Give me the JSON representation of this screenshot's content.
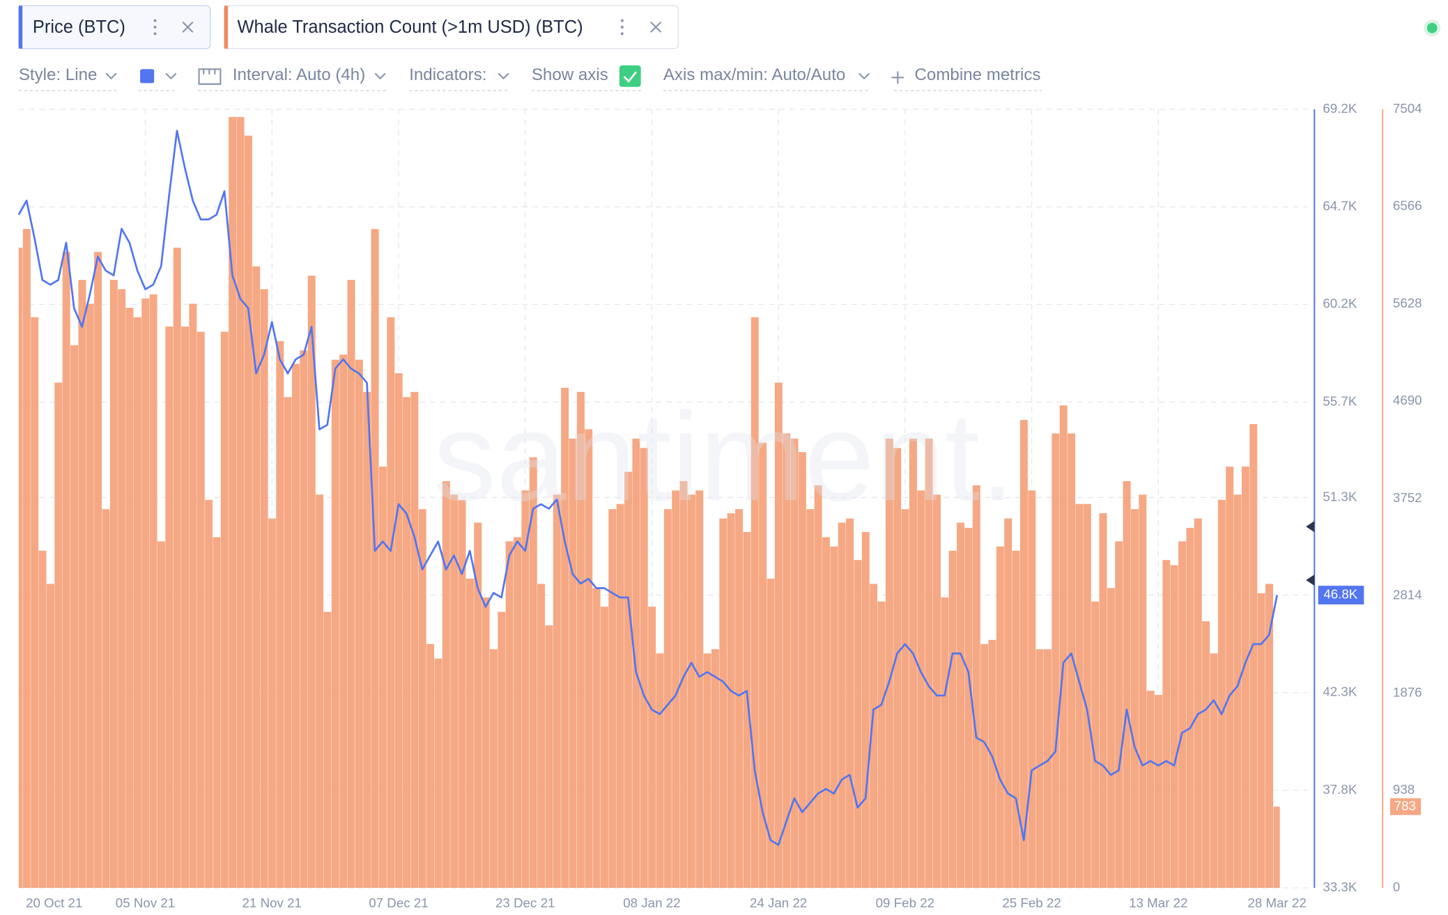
{
  "toolbar": {
    "style": "Style: Line",
    "interval": "Interval: Auto (4h)",
    "indicators": "Indicators:",
    "show_axis": "Show axis",
    "axis_range": "Axis max/min: Auto/Auto",
    "combine": "Combine metrics",
    "watermark": "santiment."
  },
  "chart_data": {
    "type": "combo",
    "x": [
      "2021-10-20",
      "2021-10-21",
      "2021-10-22",
      "2021-10-23",
      "2021-10-24",
      "2021-10-25",
      "2021-10-26",
      "2021-10-27",
      "2021-10-28",
      "2021-10-29",
      "2021-10-30",
      "2021-10-31",
      "2021-11-01",
      "2021-11-02",
      "2021-11-03",
      "2021-11-04",
      "2021-11-05",
      "2021-11-06",
      "2021-11-07",
      "2021-11-08",
      "2021-11-09",
      "2021-11-10",
      "2021-11-11",
      "2021-11-12",
      "2021-11-13",
      "2021-11-14",
      "2021-11-15",
      "2021-11-16",
      "2021-11-17",
      "2021-11-18",
      "2021-11-19",
      "2021-11-20",
      "2021-11-21",
      "2021-11-22",
      "2021-11-23",
      "2021-11-24",
      "2021-11-25",
      "2021-11-26",
      "2021-11-27",
      "2021-11-28",
      "2021-11-29",
      "2021-11-30",
      "2021-12-01",
      "2021-12-02",
      "2021-12-03",
      "2021-12-04",
      "2021-12-05",
      "2021-12-06",
      "2021-12-07",
      "2021-12-08",
      "2021-12-09",
      "2021-12-10",
      "2021-12-11",
      "2021-12-12",
      "2021-12-13",
      "2021-12-14",
      "2021-12-15",
      "2021-12-16",
      "2021-12-17",
      "2021-12-18",
      "2021-12-19",
      "2021-12-20",
      "2021-12-21",
      "2021-12-22",
      "2021-12-23",
      "2021-12-24",
      "2021-12-25",
      "2021-12-26",
      "2021-12-27",
      "2021-12-28",
      "2021-12-29",
      "2021-12-30",
      "2021-12-31",
      "2022-01-01",
      "2022-01-02",
      "2022-01-03",
      "2022-01-04",
      "2022-01-05",
      "2022-01-06",
      "2022-01-07",
      "2022-01-08",
      "2022-01-09",
      "2022-01-10",
      "2022-01-11",
      "2022-01-12",
      "2022-01-13",
      "2022-01-14",
      "2022-01-15",
      "2022-01-16",
      "2022-01-17",
      "2022-01-18",
      "2022-01-19",
      "2022-01-20",
      "2022-01-21",
      "2022-01-22",
      "2022-01-23",
      "2022-01-24",
      "2022-01-25",
      "2022-01-26",
      "2022-01-27",
      "2022-01-28",
      "2022-01-29",
      "2022-01-30",
      "2022-01-31",
      "2022-02-01",
      "2022-02-02",
      "2022-02-03",
      "2022-02-04",
      "2022-02-05",
      "2022-02-06",
      "2022-02-07",
      "2022-02-08",
      "2022-02-09",
      "2022-02-10",
      "2022-02-11",
      "2022-02-12",
      "2022-02-13",
      "2022-02-14",
      "2022-02-15",
      "2022-02-16",
      "2022-02-17",
      "2022-02-18",
      "2022-02-19",
      "2022-02-20",
      "2022-02-21",
      "2022-02-22",
      "2022-02-23",
      "2022-02-24",
      "2022-02-25",
      "2022-02-26",
      "2022-02-27",
      "2022-02-28",
      "2022-03-01",
      "2022-03-02",
      "2022-03-03",
      "2022-03-04",
      "2022-03-05",
      "2022-03-06",
      "2022-03-07",
      "2022-03-08",
      "2022-03-09",
      "2022-03-10",
      "2022-03-11",
      "2022-03-12",
      "2022-03-13",
      "2022-03-14",
      "2022-03-15",
      "2022-03-16",
      "2022-03-17",
      "2022-03-18",
      "2022-03-19",
      "2022-03-20",
      "2022-03-21",
      "2022-03-22",
      "2022-03-23",
      "2022-03-24",
      "2022-03-25",
      "2022-03-26",
      "2022-03-27",
      "2022-03-28"
    ],
    "series": [
      {
        "name": "Price (BTC)",
        "type": "line",
        "axis": "y",
        "color": "#5275f0",
        "last_label": "46.8K",
        "values": [
          64340,
          64990,
          63260,
          61330,
          61110,
          61330,
          63050,
          60030,
          59170,
          60680,
          62400,
          61760,
          61540,
          63690,
          63050,
          61760,
          60900,
          61110,
          61970,
          65200,
          68210,
          66490,
          64990,
          64120,
          64120,
          64340,
          65420,
          61540,
          60470,
          60030,
          57020,
          57880,
          59390,
          57670,
          57020,
          57670,
          57880,
          59170,
          54440,
          54650,
          57240,
          57670,
          57240,
          57020,
          56590,
          48840,
          49270,
          48840,
          50990,
          50560,
          49490,
          47980,
          48630,
          49270,
          47980,
          48630,
          47770,
          48840,
          47120,
          46260,
          46900,
          46690,
          48630,
          49270,
          48840,
          50780,
          50990,
          50780,
          51210,
          49270,
          47770,
          47330,
          47550,
          47120,
          47120,
          46900,
          46690,
          46690,
          43250,
          42170,
          41520,
          41310,
          41740,
          42170,
          43030,
          43680,
          43030,
          43250,
          43030,
          42810,
          42380,
          42170,
          42380,
          38720,
          36790,
          35500,
          35280,
          36360,
          37430,
          36790,
          37220,
          37650,
          37860,
          37650,
          38290,
          38510,
          37000,
          37430,
          41520,
          41740,
          42810,
          44110,
          44540,
          44110,
          43250,
          42600,
          42170,
          42170,
          44110,
          44110,
          43250,
          40230,
          40020,
          39370,
          38290,
          37650,
          37430,
          35500,
          38720,
          38940,
          39150,
          39590,
          43680,
          44110,
          42810,
          41520,
          39150,
          38940,
          38510,
          38720,
          41520,
          39800,
          38940,
          39150,
          38940,
          39150,
          38940,
          40450,
          40660,
          41310,
          41520,
          41950,
          41310,
          42170,
          42600,
          43680,
          44540,
          44540,
          44970,
          46800
        ]
      },
      {
        "name": "Whale Transaction Count (>1m USD) (BTC)",
        "type": "bar",
        "axis": "y2",
        "color": "#f5a883",
        "values": [
          6170,
          6350,
          5500,
          3250,
          2930,
          4870,
          6130,
          5230,
          5860,
          5630,
          6130,
          3650,
          5860,
          5770,
          5590,
          5500,
          5680,
          5720,
          3340,
          5410,
          6170,
          5410,
          5630,
          5360,
          3740,
          3380,
          5360,
          7430,
          7430,
          7250,
          5990,
          5770,
          3560,
          5270,
          4730,
          5050,
          5180,
          5900,
          3790,
          2660,
          5090,
          5140,
          5860,
          5090,
          4780,
          6350,
          4060,
          5500,
          4960,
          4730,
          4780,
          3650,
          2350,
          2210,
          3920,
          3790,
          3740,
          2980,
          3520,
          2800,
          2300,
          2660,
          3340,
          3380,
          3830,
          4150,
          2930,
          2530,
          3790,
          4820,
          4330,
          4780,
          4420,
          2890,
          2710,
          3650,
          3700,
          4010,
          4330,
          4240,
          2710,
          2260,
          3650,
          3830,
          3920,
          3790,
          3830,
          2260,
          2300,
          3560,
          3610,
          3650,
          3430,
          5500,
          4290,
          2980,
          4870,
          4380,
          4330,
          4200,
          3650,
          3880,
          3380,
          3290,
          3520,
          3560,
          3160,
          3430,
          2930,
          2760,
          4330,
          4240,
          3650,
          4330,
          3830,
          4330,
          3790,
          2800,
          3250,
          3520,
          3470,
          3880,
          2350,
          2390,
          3290,
          3560,
          3250,
          4510,
          3830,
          2300,
          2300,
          4380,
          4650,
          4380,
          3700,
          3700,
          2760,
          3610,
          2890,
          3340,
          3920,
          3650,
          3790,
          1900,
          1860,
          3160,
          3110,
          3340,
          3470,
          3560,
          2570,
          2260,
          3740,
          4060,
          3790,
          4060,
          4470,
          2840,
          2930,
          783
        ]
      }
    ],
    "ylim": [
      33300,
      69200
    ],
    "yticks": [
      {
        "value": 33300,
        "label": "33.3K"
      },
      {
        "value": 37800,
        "label": "37.8K"
      },
      {
        "value": 42300,
        "label": "42.3K"
      },
      {
        "value": 46800,
        "label": "46.8K"
      },
      {
        "value": 51300,
        "label": "51.3K"
      },
      {
        "value": 55700,
        "label": "55.7K"
      },
      {
        "value": 60200,
        "label": "60.2K"
      },
      {
        "value": 64700,
        "label": "64.7K"
      },
      {
        "value": 69200,
        "label": "69.2K"
      }
    ],
    "y2lim": [
      0,
      7504
    ],
    "y2ticks": [
      0,
      938,
      1876,
      2814,
      3752,
      4690,
      5628,
      6566,
      7504
    ],
    "xticks": [
      {
        "value": "2021-10-20",
        "label": "20 Oct 21"
      },
      {
        "value": "2021-11-05",
        "label": "05 Nov 21"
      },
      {
        "value": "2021-11-21",
        "label": "21 Nov 21"
      },
      {
        "value": "2021-12-07",
        "label": "07 Dec 21"
      },
      {
        "value": "2021-12-23",
        "label": "23 Dec 21"
      },
      {
        "value": "2022-01-08",
        "label": "08 Jan 22"
      },
      {
        "value": "2022-01-24",
        "label": "24 Jan 22"
      },
      {
        "value": "2022-02-09",
        "label": "09 Feb 22"
      },
      {
        "value": "2022-02-25",
        "label": "25 Feb 22"
      },
      {
        "value": "2022-03-13",
        "label": "13 Mar 22"
      },
      {
        "value": "2022-03-28",
        "label": "28 Mar 22"
      }
    ],
    "grid": true
  }
}
